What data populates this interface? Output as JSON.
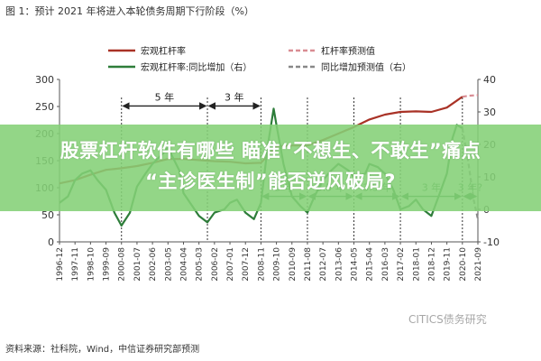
{
  "figure": {
    "title": "图 1：预计 2021 年将进入本轮债务周期下行阶段（%）",
    "source": "资料来源：社科院，Wind，中信证券研究部预测",
    "watermark": "CITICS债务研究"
  },
  "overlay": {
    "headline_line1": "股票杠杆软件有哪些 瞄准“不想生、不敢生”痛点",
    "headline_line2": "“主诊医生制”能否逆风破局?"
  },
  "chart_data": {
    "type": "line",
    "x_type": "date",
    "x_tick_labels": [
      "1996-12",
      "1997-11",
      "1998-10",
      "1999-09",
      "2000-08",
      "2001-07",
      "2002-06",
      "2003-05",
      "2004-04",
      "2005-03",
      "2006-02",
      "2007-01",
      "2007-12",
      "2008-11",
      "2009-10",
      "2010-09",
      "2011-08",
      "2012-07",
      "2013-06",
      "2014-05",
      "2015-04",
      "2016-03",
      "2017-02",
      "2018-01",
      "2018-12",
      "2019-11",
      "2020-10",
      "2021-09"
    ],
    "y_left": {
      "ticks": [
        0,
        50,
        100,
        150,
        200,
        250,
        300
      ],
      "ylim": [
        0,
        300
      ]
    },
    "y_right": {
      "ticks": [
        -10,
        0,
        10,
        20,
        30,
        40
      ],
      "ylim": [
        -10,
        40
      ]
    },
    "legend": {
      "placement": "top",
      "items": [
        {
          "label": "宏观杠杆率",
          "color": "#a93226",
          "style": "solid"
        },
        {
          "label": "杠杆率预测值",
          "color": "#d98c93",
          "style": "dashed"
        },
        {
          "label": "宏观杠杆率:同比增加（右）",
          "color": "#2e7d3a",
          "style": "solid"
        },
        {
          "label": "同比增加预测值（右）",
          "color": "#888888",
          "style": "dashed"
        }
      ]
    },
    "series": [
      {
        "name": "宏观杠杆率",
        "axis": "left",
        "color": "#a93226",
        "style": "solid",
        "points": [
          [
            "1996-12",
            108
          ],
          [
            "1997-11",
            114
          ],
          [
            "1998-10",
            124
          ],
          [
            "1999-09",
            133
          ],
          [
            "2000-08",
            136
          ],
          [
            "2001-07",
            140
          ],
          [
            "2002-06",
            146
          ],
          [
            "2003-05",
            153
          ],
          [
            "2004-04",
            153
          ],
          [
            "2005-03",
            151
          ],
          [
            "2006-02",
            149
          ],
          [
            "2007-01",
            148
          ],
          [
            "2007-12",
            145
          ],
          [
            "2008-11",
            146
          ],
          [
            "2009-10",
            176
          ],
          [
            "2010-09",
            178
          ],
          [
            "2011-08",
            178
          ],
          [
            "2012-07",
            188
          ],
          [
            "2013-06",
            200
          ],
          [
            "2014-05",
            212
          ],
          [
            "2015-04",
            226
          ],
          [
            "2016-03",
            235
          ],
          [
            "2017-02",
            240
          ],
          [
            "2018-01",
            241
          ],
          [
            "2018-12",
            240
          ],
          [
            "2019-11",
            248
          ],
          [
            "2020-10",
            268
          ]
        ]
      },
      {
        "name": "杠杆率预测值",
        "axis": "left",
        "color": "#d98c93",
        "style": "dashed",
        "points": [
          [
            "2020-10",
            268
          ],
          [
            "2021-03",
            270
          ],
          [
            "2021-09",
            271
          ]
        ]
      },
      {
        "name": "宏观杠杆率:同比增加（右）",
        "axis": "right",
        "color": "#2e7d3a",
        "style": "solid",
        "points": [
          [
            "1996-12",
            2
          ],
          [
            "1997-06",
            4
          ],
          [
            "1997-11",
            9
          ],
          [
            "1998-04",
            11
          ],
          [
            "1998-10",
            12
          ],
          [
            "1999-03",
            9
          ],
          [
            "1999-09",
            6
          ],
          [
            "2000-03",
            -1
          ],
          [
            "2000-08",
            -5
          ],
          [
            "2001-02",
            -1
          ],
          [
            "2001-07",
            7
          ],
          [
            "2002-01",
            11
          ],
          [
            "2002-06",
            14
          ],
          [
            "2003-01",
            17
          ],
          [
            "2003-05",
            19
          ],
          [
            "2004-01",
            12
          ],
          [
            "2004-04",
            5
          ],
          [
            "2005-03",
            -2
          ],
          [
            "2005-09",
            -4
          ],
          [
            "2006-02",
            -1
          ],
          [
            "2006-09",
            0
          ],
          [
            "2007-01",
            2
          ],
          [
            "2007-06",
            3
          ],
          [
            "2007-12",
            -1
          ],
          [
            "2008-06",
            -3
          ],
          [
            "2008-11",
            2
          ],
          [
            "2009-04",
            20
          ],
          [
            "2009-08",
            31
          ],
          [
            "2009-10",
            26
          ],
          [
            "2010-03",
            14
          ],
          [
            "2010-09",
            4
          ],
          [
            "2011-03",
            1
          ],
          [
            "2011-08",
            -1
          ],
          [
            "2012-01",
            4
          ],
          [
            "2012-07",
            9
          ],
          [
            "2013-01",
            12
          ],
          [
            "2013-06",
            14
          ],
          [
            "2014-01",
            12
          ],
          [
            "2014-05",
            10
          ],
          [
            "2015-01",
            11
          ],
          [
            "2015-04",
            14
          ],
          [
            "2015-10",
            13
          ],
          [
            "2016-03",
            11
          ],
          [
            "2016-09",
            6
          ],
          [
            "2017-02",
            0
          ],
          [
            "2017-08",
            1
          ],
          [
            "2018-01",
            3
          ],
          [
            "2018-06",
            0
          ],
          [
            "2018-12",
            -2
          ],
          [
            "2019-06",
            5
          ],
          [
            "2019-11",
            11
          ],
          [
            "2020-03",
            22
          ],
          [
            "2020-06",
            26
          ],
          [
            "2020-10",
            25
          ]
        ]
      },
      {
        "name": "同比增加预测值（右）",
        "axis": "right",
        "color": "#888888",
        "style": "dashed",
        "points": [
          [
            "2020-10",
            25
          ],
          [
            "2021-02",
            15
          ],
          [
            "2021-06",
            3
          ],
          [
            "2021-09",
            -3
          ]
        ]
      }
    ],
    "vertical_markers": [
      "2000-08",
      "2005-09",
      "2008-11",
      "2011-08",
      "2014-05",
      "2017-02",
      "2020-10"
    ],
    "interval_annotations": [
      {
        "label": "5 年",
        "from": "2000-08",
        "to": "2005-09",
        "level": 251,
        "color": "#222222"
      },
      {
        "label": "3 年",
        "from": "2005-09",
        "to": "2008-11",
        "level": 251,
        "color": "#222222"
      },
      {
        "label": "3 年",
        "from": "2008-11",
        "to": "2011-08",
        "level": 24,
        "color": "#2e7d3a"
      },
      {
        "label": "3.5 年",
        "from": "2011-08",
        "to": "2014-05",
        "level": 24,
        "color": "#2e7d3a"
      },
      {
        "label": "3.5 年",
        "from": "2014-05",
        "to": "2017-02",
        "level": 24,
        "color": "#2e7d3a"
      },
      {
        "label": "3 年",
        "from": "2017-02",
        "to": "2020-10",
        "level": 24,
        "color": "#2e7d3a"
      },
      {
        "label": "3 年?",
        "from": "2020-10",
        "to": "2021-09",
        "level": 24,
        "color": "#2e7d3a"
      }
    ],
    "grid": false
  }
}
